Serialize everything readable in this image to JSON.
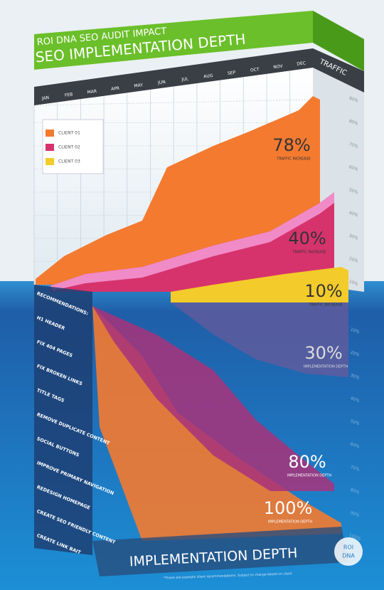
{
  "header": {
    "kicker": "ROI DNA SEO AUDIT IMPACT",
    "title": "SEO IMPLEMENTATION DEPTH",
    "right_axis_title": "TRAFFIC"
  },
  "months": [
    "JAN",
    "FEB",
    "MAR",
    "APR",
    "MAY",
    "JUN",
    "JUL",
    "AUG",
    "SEP",
    "OCT",
    "NOV",
    "DEC"
  ],
  "traffic_axis": [
    "90%",
    "80%",
    "70%",
    "60%",
    "50%",
    "40%",
    "30%",
    "20%",
    "10%"
  ],
  "depth_axis": [
    "10%",
    "20%",
    "30%",
    "40%",
    "50%",
    "60%",
    "70%",
    "80%",
    "90%",
    "100%"
  ],
  "legend": [
    "CLIENT 01",
    "CLIENT 02",
    "CLIENT 03"
  ],
  "callouts": [
    {
      "value": "78%",
      "caption": "TRAFFIC INCREASE"
    },
    {
      "value": "40%",
      "caption": "TRAFFIC INCREASE"
    },
    {
      "value": "10%",
      "caption": "TRAFFIC INCREASE"
    },
    {
      "value": "30%",
      "caption": "IMPLEMENTATION DEPTH"
    },
    {
      "value": "80%",
      "caption": "IMPLEMENTATION DEPTH"
    },
    {
      "value": "100%",
      "caption": "IMPLEMENTATION DEPTH"
    }
  ],
  "recommendations": [
    "RECOMMENDATIONS:",
    "H1 HEADER",
    "FIX 404 PAGES",
    "FIX BROKEN LINKS",
    "TITLE TAGS",
    "REMOVE DUPLICATE CONTENT",
    "SOCIAL BUTTONS",
    "IMPROVE PRIMARY NAVIGATION",
    "REDESIGN HOMEPAGE",
    "CREATE SEO FRIENDLY CONTENT",
    "CREATE LINK BAIT"
  ],
  "footer": {
    "title": "IMPLEMENTATION DEPTH",
    "note": "*These are example client recommendations. Subject to change based on client",
    "logo_top": "ROI",
    "logo_bottom": "DNA"
  }
}
